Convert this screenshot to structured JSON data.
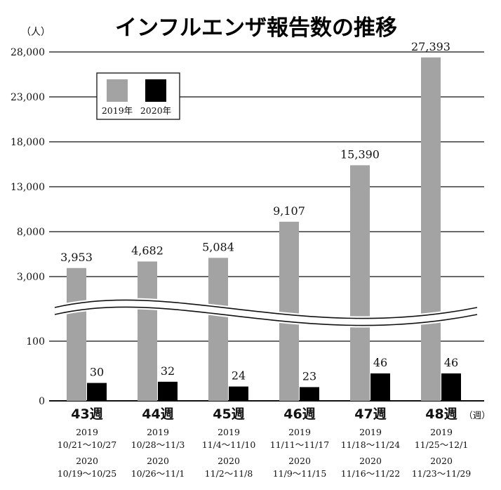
{
  "chart_data": {
    "type": "bar",
    "title": "インフルエンザ報告数の推移",
    "y_unit": "（人）",
    "x_unit": "（週）",
    "y_axis_broken": true,
    "y_ticks_upper": [
      "3,000",
      "8,000",
      "13,000",
      "18,000",
      "23,000",
      "28,000"
    ],
    "y_ticks_lower": [
      "0",
      "100"
    ],
    "legend": {
      "placement": "top-left",
      "items": [
        "2019年",
        "2020年"
      ],
      "colors": [
        "#a3a3a3",
        "#000000"
      ]
    },
    "series": [
      {
        "name": "2019年",
        "color": "#a3a3a3",
        "values": [
          3953,
          4682,
          5084,
          9107,
          15390,
          27393
        ],
        "labels": [
          "3,953",
          "4,682",
          "5,084",
          "9,107",
          "15,390",
          "27,393"
        ]
      },
      {
        "name": "2020年",
        "color": "#000000",
        "values": [
          30,
          32,
          24,
          23,
          46,
          46
        ],
        "labels": [
          "30",
          "32",
          "24",
          "23",
          "46",
          "46"
        ]
      }
    ],
    "categories": [
      {
        "week": "43週",
        "y2019": "2019",
        "r2019": "10/21～10/27",
        "y2020": "2020",
        "r2020": "10/19～10/25"
      },
      {
        "week": "44週",
        "y2019": "2019",
        "r2019": "10/28～11/3",
        "y2020": "2020",
        "r2020": "10/26～11/1"
      },
      {
        "week": "45週",
        "y2019": "2019",
        "r2019": "11/4～11/10",
        "y2020": "2020",
        "r2020": "11/2～11/8"
      },
      {
        "week": "46週",
        "y2019": "2019",
        "r2019": "11/11～11/17",
        "y2020": "2020",
        "r2020": "11/9～11/15"
      },
      {
        "week": "47週",
        "y2019": "2019",
        "r2019": "11/18～11/24",
        "y2020": "2020",
        "r2020": "11/16～11/22"
      },
      {
        "week": "48週",
        "y2019": "2019",
        "r2019": "11/25～12/1",
        "y2020": "2020",
        "r2020": "11/23～11/29"
      }
    ]
  }
}
